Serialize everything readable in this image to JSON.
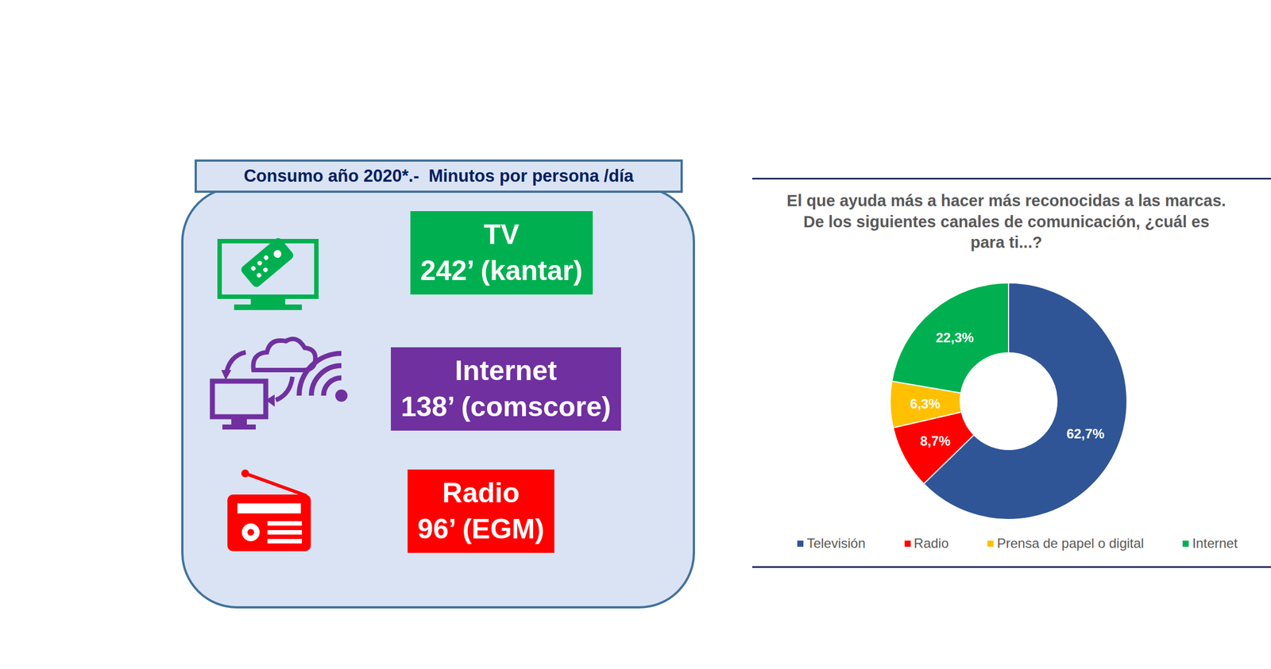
{
  "panel": {
    "title": "Consumo año 2020*.-  Minutos por persona /día",
    "items": [
      {
        "label": "TV",
        "text": "242’ (kantar)",
        "color": "#00b050"
      },
      {
        "label": "Internet",
        "text": "138’ (comscore)",
        "color": "#7030a0"
      },
      {
        "label": "Radio",
        "text": "96’ (EGM)",
        "color": "#ff0000"
      }
    ]
  },
  "chart_data": {
    "type": "donut",
    "title": "El que ayuda más a hacer más reconocidas a las marcas. De los siguientes canales de comunicación, ¿cuál es para ti...?",
    "categories": [
      "Televisión",
      "Radio",
      "Prensa de papel o digital",
      "Internet"
    ],
    "values": [
      62.7,
      8.7,
      6.3,
      22.3
    ],
    "value_labels": [
      "62,7%",
      "8,7%",
      "6,3%",
      "22,3%"
    ],
    "colors": [
      "#2f5597",
      "#ff0000",
      "#ffc000",
      "#00b050"
    ],
    "data_labels": true,
    "legend": "bottom"
  }
}
